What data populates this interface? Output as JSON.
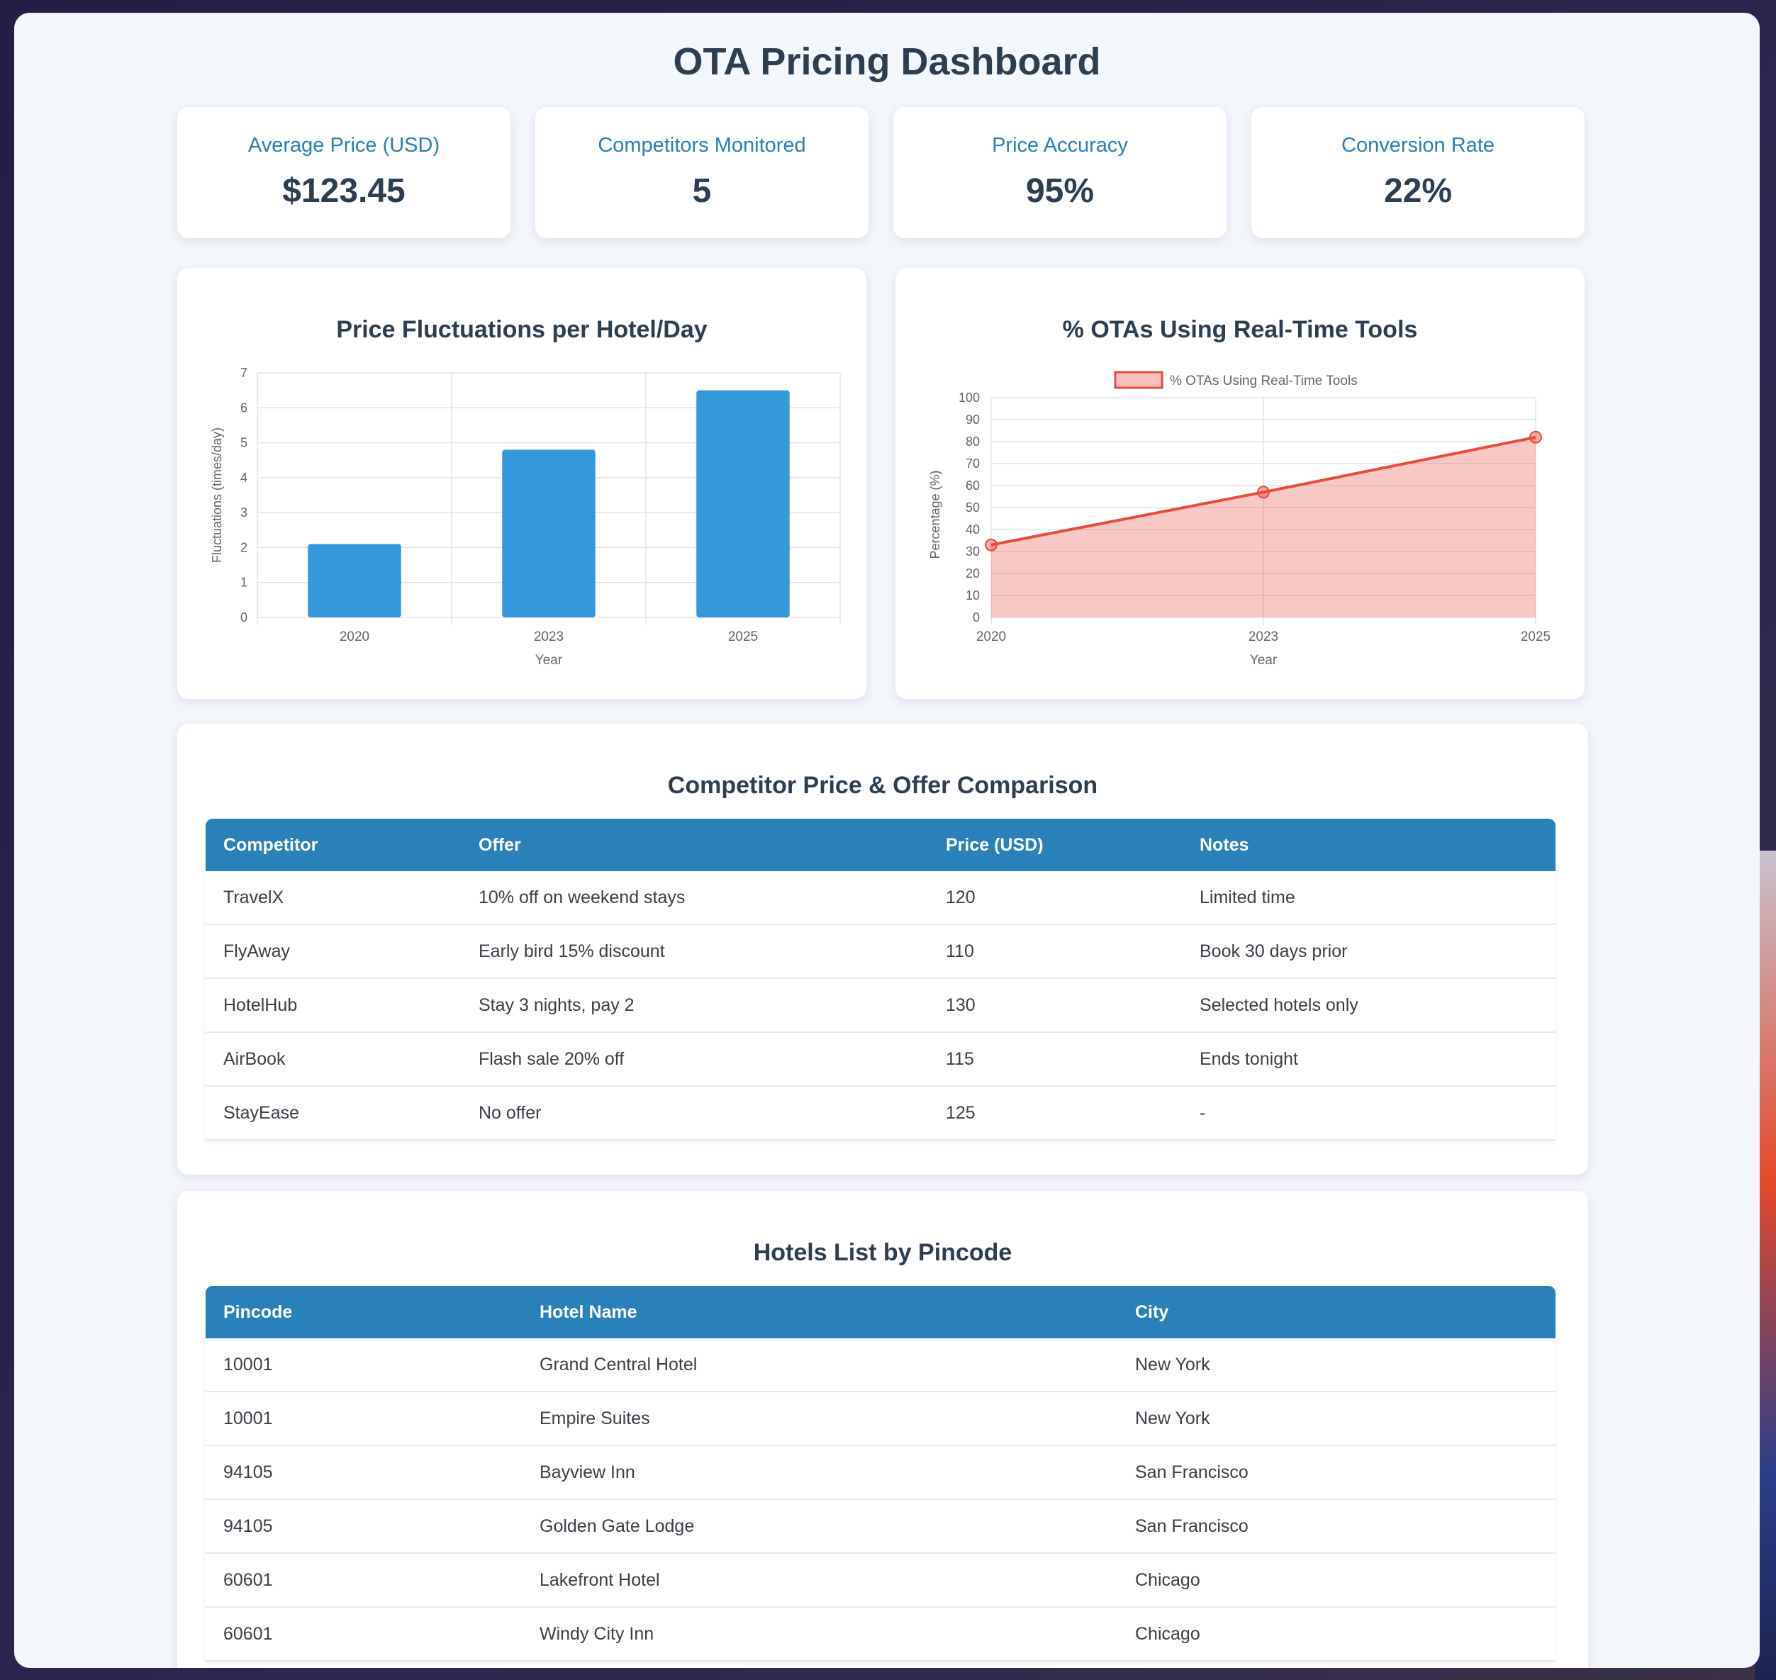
{
  "page": {
    "title": "OTA Pricing Dashboard"
  },
  "kpis": [
    {
      "label": "Average Price (USD)",
      "value": "$123.45"
    },
    {
      "label": "Competitors Monitored",
      "value": "5"
    },
    {
      "label": "Price Accuracy",
      "value": "95%"
    },
    {
      "label": "Conversion Rate",
      "value": "22%"
    }
  ],
  "chart_data": [
    {
      "type": "bar",
      "title": "Price Fluctuations per Hotel/Day",
      "categories": [
        "2020",
        "2023",
        "2025"
      ],
      "values": [
        2.1,
        4.8,
        6.5
      ],
      "xlabel": "Year",
      "ylabel": "Fluctuations (times/day)",
      "ylim": [
        0,
        7
      ],
      "yticks": [
        "0",
        "1",
        "2",
        "3",
        "4",
        "5",
        "6",
        "7"
      ],
      "grid": true,
      "color": "#3498db"
    },
    {
      "type": "area",
      "title": "% OTAs Using Real-Time Tools",
      "categories": [
        "2020",
        "2023",
        "2025"
      ],
      "series": [
        {
          "name": "% OTAs Using Real-Time Tools",
          "values": [
            33,
            57,
            82
          ]
        }
      ],
      "xlabel": "Year",
      "ylabel": "Percentage (%)",
      "ylim": [
        0,
        100
      ],
      "yticks": [
        "0",
        "10",
        "20",
        "30",
        "40",
        "50",
        "60",
        "70",
        "80",
        "90",
        "100"
      ],
      "legend": "top",
      "grid": true,
      "color": "#e74c3c"
    }
  ],
  "competitors": {
    "title": "Competitor Price & Offer Comparison",
    "columns": [
      "Competitor",
      "Offer",
      "Price (USD)",
      "Notes"
    ],
    "rows": [
      [
        "TravelX",
        "10% off on weekend stays",
        "120",
        "Limited time"
      ],
      [
        "FlyAway",
        "Early bird 15% discount",
        "110",
        "Book 30 days prior"
      ],
      [
        "HotelHub",
        "Stay 3 nights, pay 2",
        "130",
        "Selected hotels only"
      ],
      [
        "AirBook",
        "Flash sale 20% off",
        "115",
        "Ends tonight"
      ],
      [
        "StayEase",
        "No offer",
        "125",
        "-"
      ]
    ]
  },
  "hotels": {
    "title": "Hotels List by Pincode",
    "columns": [
      "Pincode",
      "Hotel Name",
      "City"
    ],
    "rows": [
      [
        "10001",
        "Grand Central Hotel",
        "New York"
      ],
      [
        "10001",
        "Empire Suites",
        "New York"
      ],
      [
        "94105",
        "Bayview Inn",
        "San Francisco"
      ],
      [
        "94105",
        "Golden Gate Lodge",
        "San Francisco"
      ],
      [
        "60601",
        "Lakefront Hotel",
        "Chicago"
      ],
      [
        "60601",
        "Windy City Inn",
        "Chicago"
      ]
    ]
  }
}
